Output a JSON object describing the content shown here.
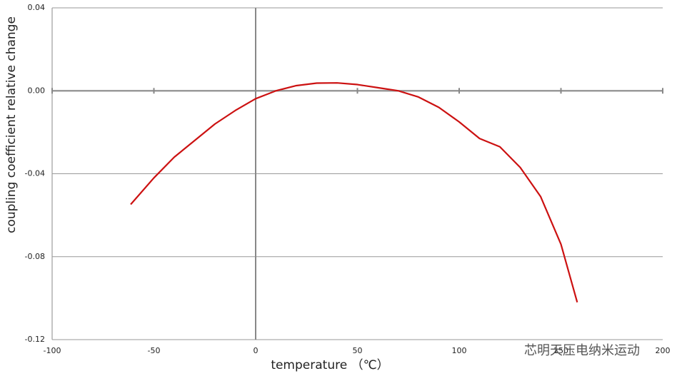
{
  "chart_data": {
    "type": "line",
    "x_label": "temperature （℃）",
    "y_label": "coupling coefficient relative change",
    "watermark": "芯明天压电纳米运动",
    "x": [
      -61.4,
      -50,
      -40,
      -30,
      -20,
      -10,
      0,
      10,
      20,
      30,
      40,
      50,
      60,
      70,
      80,
      90,
      100,
      110,
      120,
      130,
      140,
      150,
      158
    ],
    "series": [
      {
        "color": "#cc1111",
        "values": [
          -0.0548,
          -0.042,
          -0.032,
          -0.024,
          -0.016,
          -0.0095,
          -0.0038,
          0.0,
          0.0025,
          0.0037,
          0.0038,
          0.003,
          0.0015,
          0.0,
          -0.003,
          -0.008,
          -0.015,
          -0.023,
          -0.027,
          -0.037,
          -0.051,
          -0.074,
          -0.102
        ]
      }
    ],
    "xlim": [
      -100,
      200
    ],
    "xticks": [
      -100,
      -50,
      0,
      50,
      100,
      150,
      200
    ],
    "ylim": [
      -0.12,
      0.04
    ],
    "yticks": [
      0.04,
      {
        "value": 0,
        "label": "0.00"
      },
      -0.04,
      -0.08,
      -0.12
    ],
    "grid": true
  }
}
